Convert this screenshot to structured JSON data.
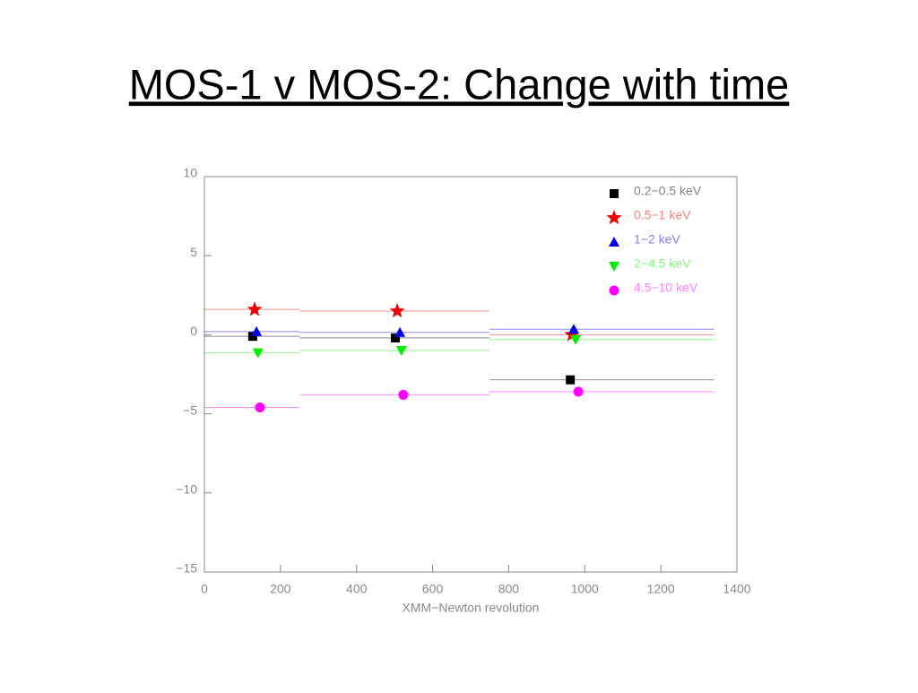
{
  "chart_data": {
    "type": "scatter",
    "title": "MOS-1 v MOS-2: Change with time",
    "xlabel": "XMM−Newton revolution",
    "xlim": [
      0,
      1400
    ],
    "xticks": [
      0,
      200,
      400,
      600,
      800,
      1000,
      1200,
      1400
    ],
    "ylim": [
      -15,
      10
    ],
    "yticks": [
      {
        "value": -15,
        "label": "−15"
      },
      {
        "value": -10,
        "label": "−10"
      },
      {
        "value": -5,
        "label": "−5"
      },
      0,
      5,
      10
    ],
    "bin_edges": [
      0,
      250,
      750,
      1340
    ],
    "legend": "upper right",
    "series": [
      {
        "name": "0.2−0.5 keV",
        "color": "#000000",
        "marker": "square",
        "x": [
          127,
          502,
          962
        ],
        "values": [
          -0.1,
          -0.2,
          -2.85
        ]
      },
      {
        "name": "0.5−1 keV",
        "color": "#ee0000",
        "marker": "star",
        "x": [
          132,
          507,
          966
        ],
        "values": [
          1.6,
          1.5,
          0
        ]
      },
      {
        "name": "1−2 keV",
        "color": "#0000ee",
        "marker": "triangle",
        "x": [
          137,
          514,
          971
        ],
        "values": [
          0.2,
          0.15,
          0.35
        ]
      },
      {
        "name": "2−4.5 keV",
        "color": "#00ee00",
        "marker": "triangle-down",
        "x": [
          141,
          518,
          976
        ],
        "values": [
          -1.15,
          -1.0,
          -0.3
        ]
      },
      {
        "name": "4.5−10 keV",
        "color": "#ff00ff",
        "marker": "circle",
        "x": [
          146,
          523,
          983
        ],
        "values": [
          -4.6,
          -3.8,
          -3.6
        ]
      }
    ]
  }
}
